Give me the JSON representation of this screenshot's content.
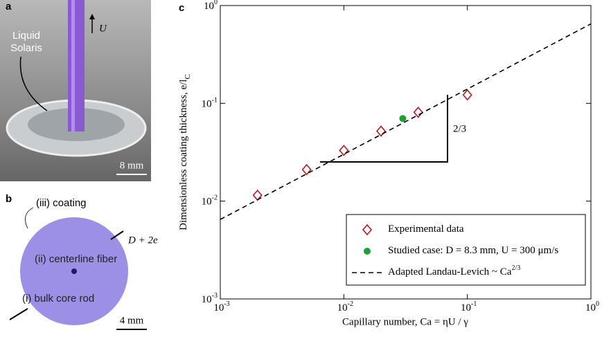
{
  "panels": {
    "a": {
      "label": "a",
      "arrow_label": "U",
      "liquid": [
        "Liquid",
        "Solaris"
      ],
      "scale": "8 mm"
    },
    "b": {
      "label": "b",
      "coating": "(iii) coating",
      "diameter": "D + 2e",
      "fiber": "(ii) centerline fiber",
      "core": "(i) bulk core rod",
      "scale": "4 mm"
    }
  },
  "chart_data": {
    "type": "scatter",
    "panel_label": "c",
    "x_label": "Capillary number, Ca = ηU / γ",
    "y_label": "Dimensionless coating thickness, e/l",
    "y_label_sub": "C",
    "log_x": true,
    "log_y": true,
    "xlim": [
      0.001,
      1
    ],
    "ylim": [
      0.001,
      1
    ],
    "xticks": [
      {
        "value": 0.001,
        "label": "10",
        "exponent": "-3"
      },
      {
        "value": 0.01,
        "label": "10",
        "exponent": "-2"
      },
      {
        "value": 0.1,
        "label": "10",
        "exponent": "-1"
      },
      {
        "value": 1,
        "label": "10",
        "exponent": "0"
      }
    ],
    "yticks": [
      {
        "value": 0.001,
        "label": "10",
        "exponent": "-3"
      },
      {
        "value": 0.01,
        "label": "10",
        "exponent": "-2"
      },
      {
        "value": 0.1,
        "label": "10",
        "exponent": "-1"
      },
      {
        "value": 1,
        "label": "10",
        "exponent": "0"
      }
    ],
    "slope_label": "2/3",
    "series": [
      {
        "name": "Experimental data",
        "color": "#c0141c",
        "marker": "diamond",
        "x": [
          0.002,
          0.005,
          0.01,
          0.02,
          0.04,
          0.1
        ],
        "values": [
          0.0115,
          0.021,
          0.033,
          0.052,
          0.081,
          0.122
        ]
      },
      {
        "name": "Studied case: D = 8.3 mm, U = 300 μm/s",
        "color": "#1aa332",
        "marker": "circle",
        "x": [
          0.03
        ],
        "values": [
          0.07
        ]
      },
      {
        "name": "Adapted Landau-Levich ~ Ca",
        "name_superscript": "2/3",
        "color": "#000000",
        "marker": "dashed-line",
        "x": [
          0.001,
          1
        ],
        "values": [
          0.0065,
          0.65
        ]
      }
    ]
  }
}
